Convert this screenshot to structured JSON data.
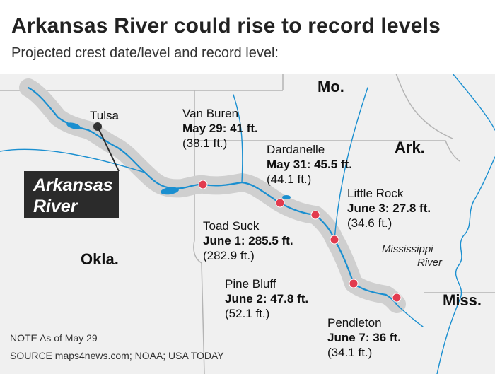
{
  "header": {
    "title": "Arkansas River could rise to record levels",
    "subtitle": "Projected crest date/level and record level:"
  },
  "states": {
    "mo": "Mo.",
    "ark": "Ark.",
    "okla": "Okla.",
    "miss": "Miss."
  },
  "cities": {
    "tulsa": "Tulsa"
  },
  "river_label": {
    "line1": "Arkansas",
    "line2": "River"
  },
  "mississippi_label": {
    "line1": "Mississippi",
    "line2": "River"
  },
  "gauges": [
    {
      "name": "Van Buren",
      "crest": "May 29: 41 ft.",
      "record": "(38.1 ft.)"
    },
    {
      "name": "Dardanelle",
      "crest": "May 31: 45.5 ft.",
      "record": "(44.1 ft.)"
    },
    {
      "name": "Little Rock",
      "crest": "June 3: 27.8 ft.",
      "record": "(34.6 ft.)"
    },
    {
      "name": "Toad Suck",
      "crest": "June 1: 285.5 ft.",
      "record": "(282.9 ft.)"
    },
    {
      "name": "Pine Bluff",
      "crest": "June 2: 47.8 ft.",
      "record": "(52.1 ft.)"
    },
    {
      "name": "Pendleton",
      "crest": "June 7: 36 ft.",
      "record": "(34.1 ft.)"
    }
  ],
  "footer": {
    "note": "NOTE As of May 29",
    "source": "SOURCE maps4news.com; NOAA; USA TODAY"
  },
  "colors": {
    "land": "#f0f0f0",
    "water": "#1a8fd0",
    "river_buffer": "#cfcfcf",
    "gauge_marker": "#e23b4e",
    "label_box": "#2b2b2b",
    "border": "#b4b4b4"
  }
}
